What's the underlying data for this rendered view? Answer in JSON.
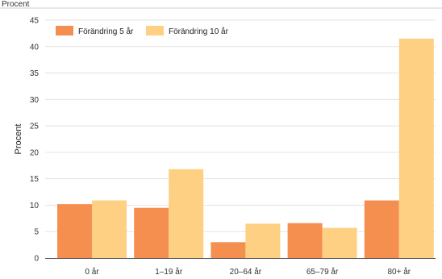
{
  "chart_data": {
    "type": "bar",
    "top_unit_label": "Procent",
    "ylabel": "Procent",
    "xlabel": "",
    "ylim": [
      0,
      45
    ],
    "yticks": [
      0,
      5,
      10,
      15,
      20,
      25,
      30,
      35,
      40,
      45
    ],
    "grid": "horizontal",
    "legend_position": "top-left",
    "categories": [
      "0 år",
      "1–19 år",
      "20–64 år",
      "65–79 år",
      "80+ år"
    ],
    "series": [
      {
        "name": "Förändring 5 år",
        "color": "#f58f4f",
        "values": [
          10.2,
          9.5,
          3.0,
          6.6,
          10.9
        ]
      },
      {
        "name": "Förändring 10 år",
        "color": "#fdd083",
        "values": [
          10.9,
          16.8,
          6.5,
          5.7,
          41.5
        ]
      }
    ]
  }
}
